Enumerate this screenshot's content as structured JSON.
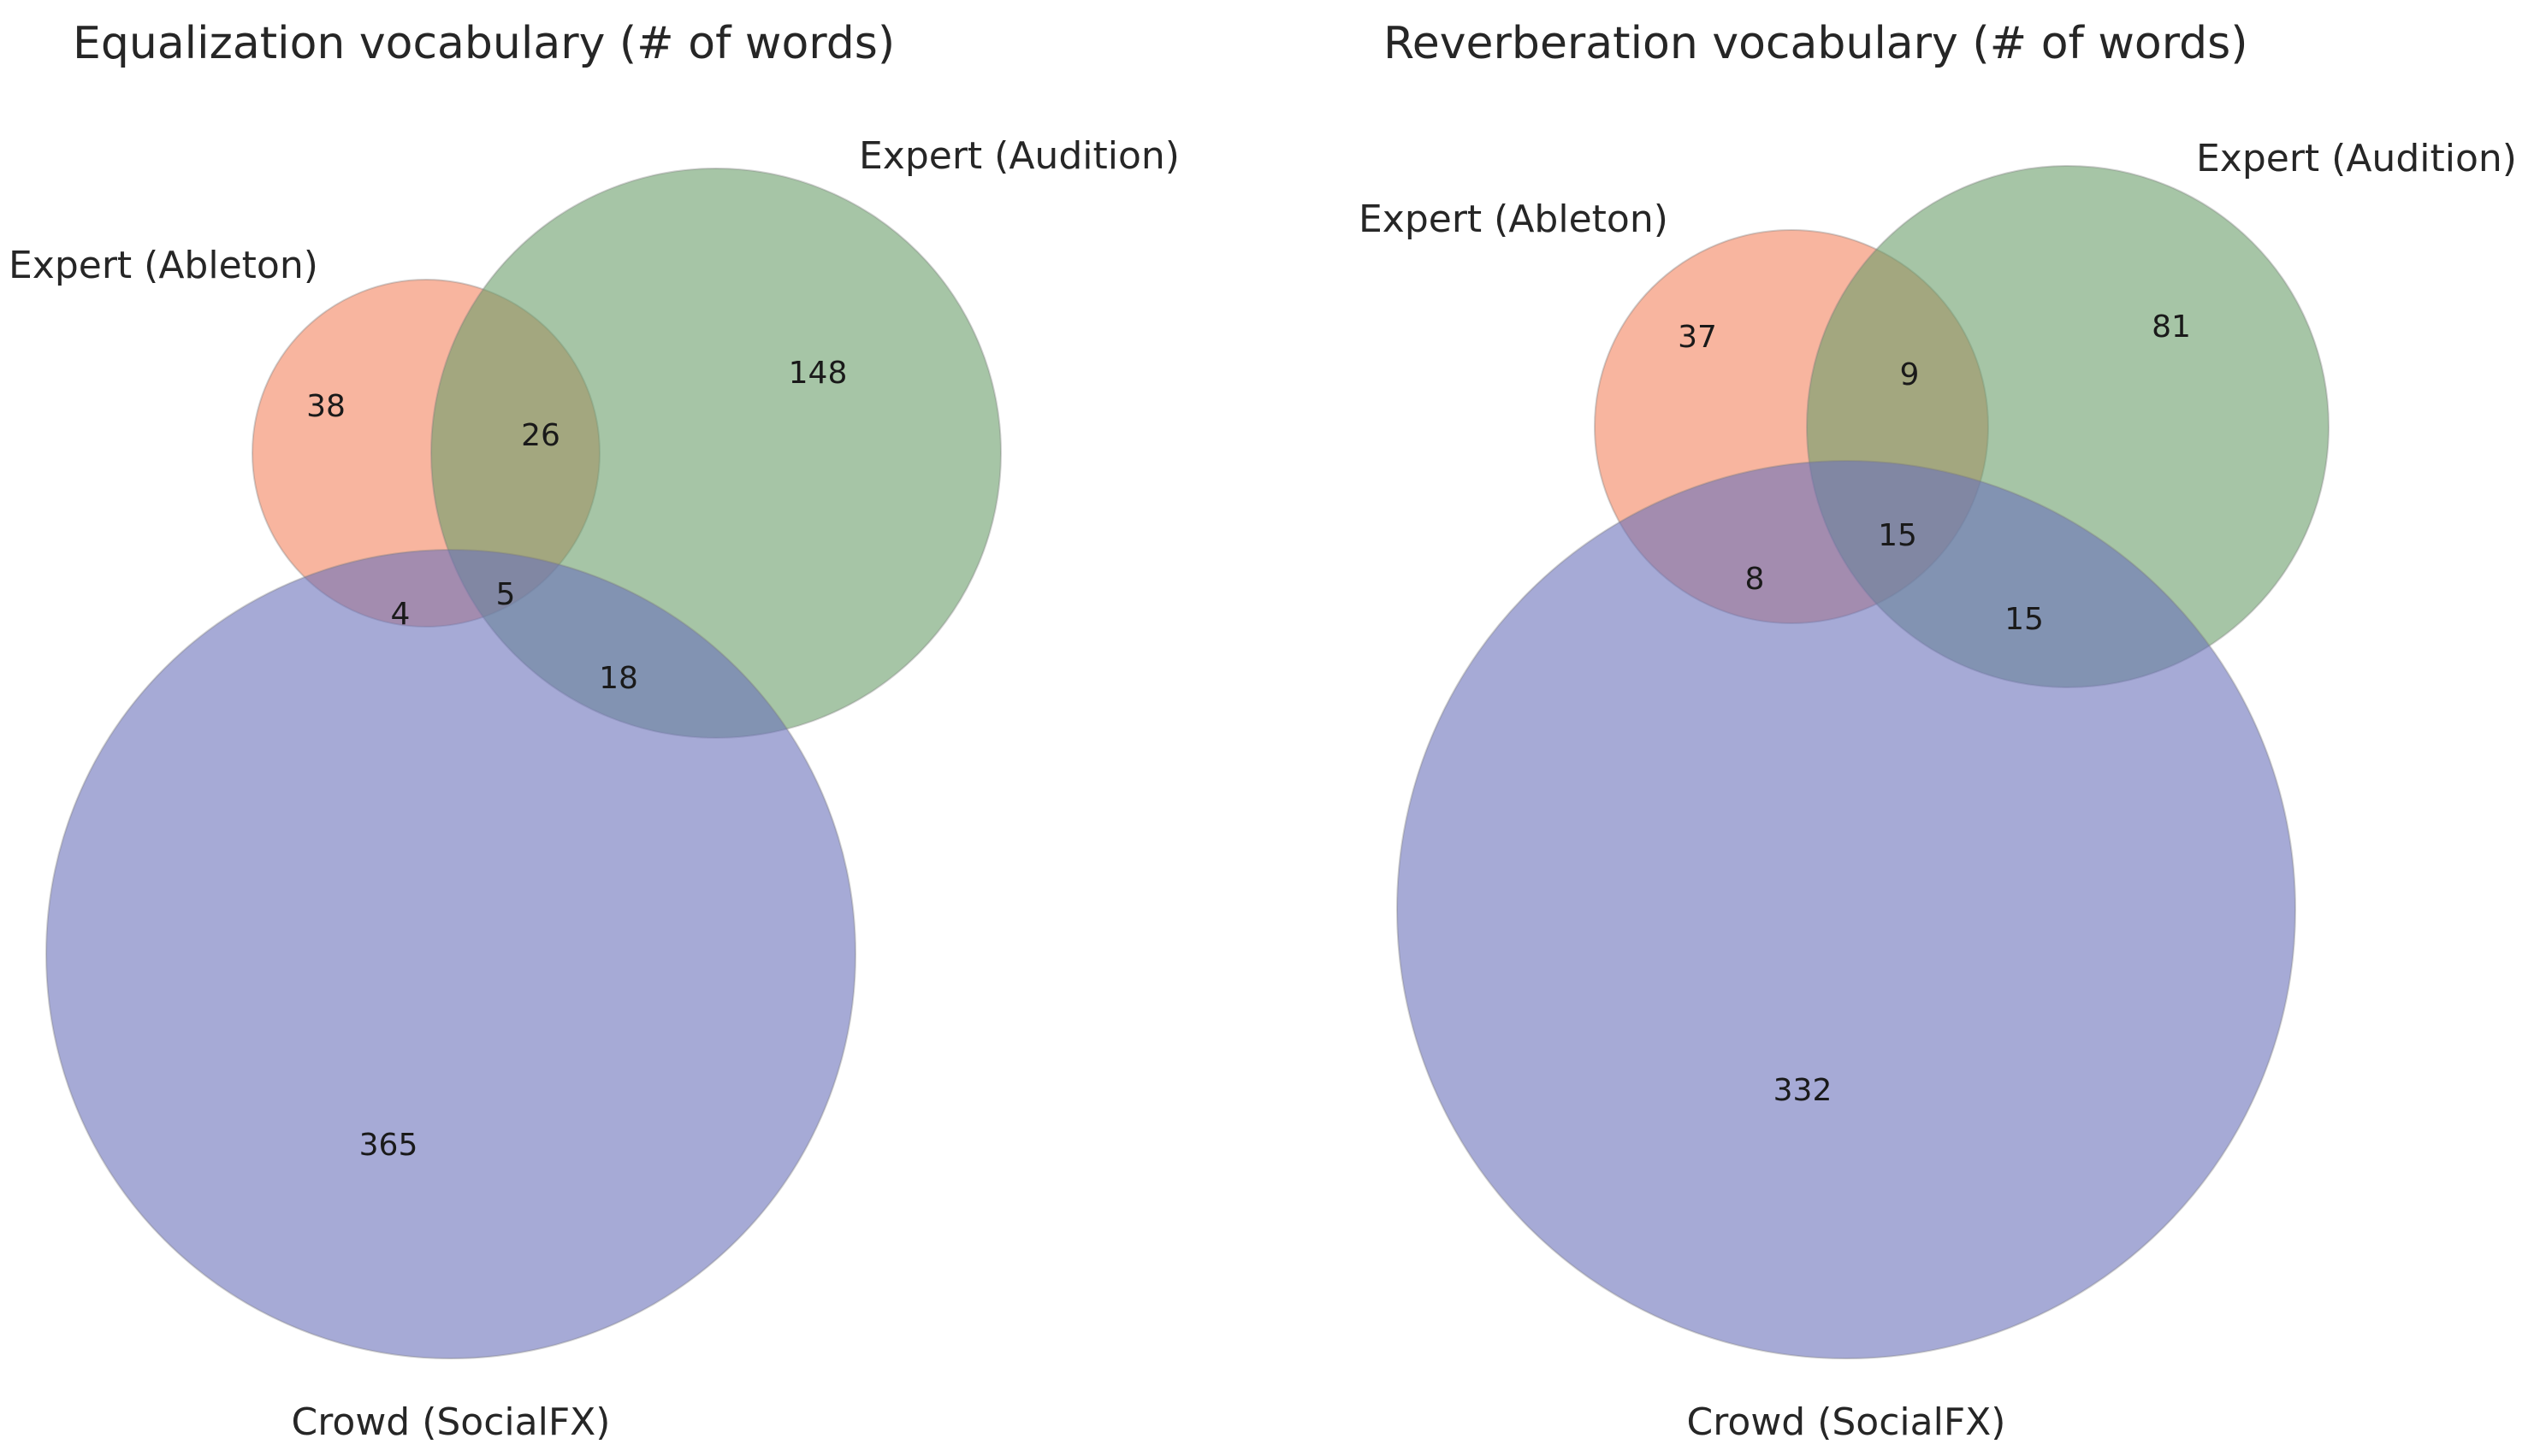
{
  "chart_data": [
    {
      "type": "venn",
      "title": "Equalization vocabulary (# of words)",
      "sets": [
        {
          "key": "ableton",
          "name": "Expert (Ableton)",
          "color": "#F4845F"
        },
        {
          "key": "audition",
          "name": "Expert (Audition)",
          "color": "#6A9E6A"
        },
        {
          "key": "crowd",
          "name": "Crowd (SocialFX)",
          "color": "#6B72BA"
        }
      ],
      "regions": [
        {
          "sets": [
            "ableton"
          ],
          "value": 38
        },
        {
          "sets": [
            "audition"
          ],
          "value": 148
        },
        {
          "sets": [
            "crowd"
          ],
          "value": 365
        },
        {
          "sets": [
            "ableton",
            "audition"
          ],
          "value": 26
        },
        {
          "sets": [
            "ableton",
            "crowd"
          ],
          "value": 4
        },
        {
          "sets": [
            "ableton",
            "audition",
            "crowd"
          ],
          "value": 5
        },
        {
          "sets": [
            "audition",
            "crowd"
          ],
          "value": 18
        }
      ]
    },
    {
      "type": "venn",
      "title": "Reverberation vocabulary (# of words)",
      "sets": [
        {
          "key": "ableton",
          "name": "Expert (Ableton)",
          "color": "#F4845F"
        },
        {
          "key": "audition",
          "name": "Expert (Audition)",
          "color": "#6A9E6A"
        },
        {
          "key": "crowd",
          "name": "Crowd (SocialFX)",
          "color": "#6B72BA"
        }
      ],
      "regions": [
        {
          "sets": [
            "ableton"
          ],
          "value": 37
        },
        {
          "sets": [
            "audition"
          ],
          "value": 81
        },
        {
          "sets": [
            "crowd"
          ],
          "value": 332
        },
        {
          "sets": [
            "ableton",
            "audition"
          ],
          "value": 9
        },
        {
          "sets": [
            "ableton",
            "crowd"
          ],
          "value": 8
        },
        {
          "sets": [
            "ableton",
            "audition",
            "crowd"
          ],
          "value": 15
        },
        {
          "sets": [
            "audition",
            "crowd"
          ],
          "value": 15
        }
      ]
    }
  ]
}
